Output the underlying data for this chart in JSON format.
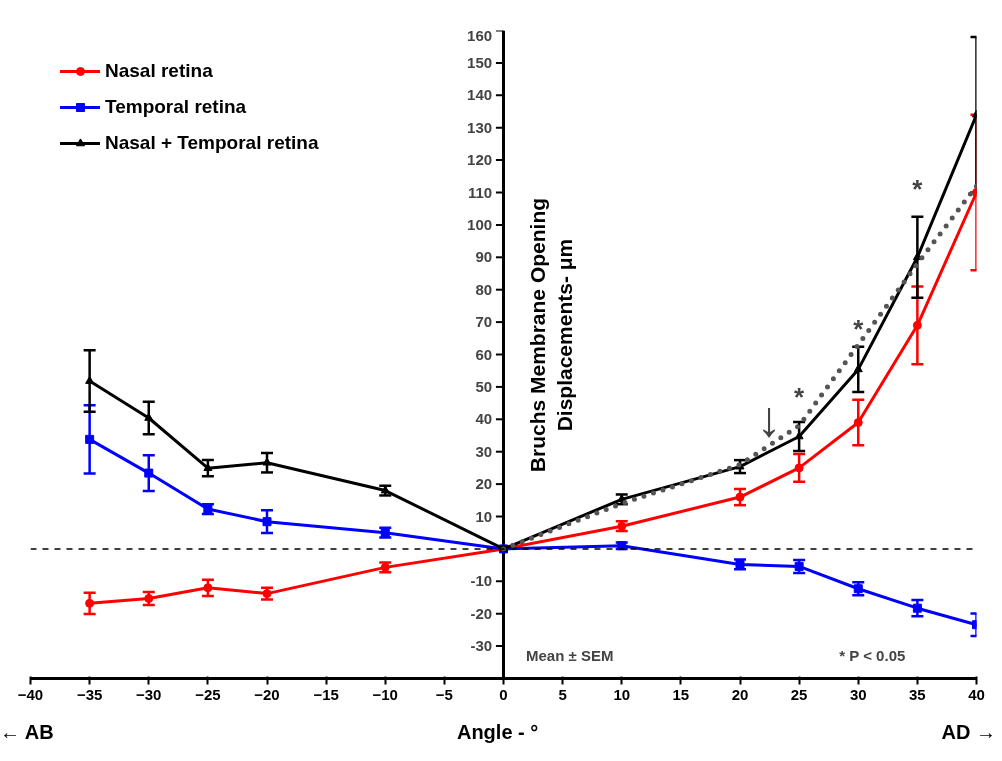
{
  "chart_data": {
    "type": "line",
    "xlabel": "Angle - °",
    "ylabel": "Bruchs Membrane Opening\nDisplacements- μm",
    "x": [
      -35,
      -30,
      -25,
      -20,
      -10,
      0,
      10,
      20,
      25,
      30,
      35,
      40
    ],
    "xlim": [
      -40,
      40
    ],
    "xticks": [
      -40,
      -35,
      -30,
      -25,
      -20,
      -15,
      -10,
      -5,
      0,
      5,
      10,
      15,
      20,
      25,
      30,
      35,
      40
    ],
    "ylim": [
      -40,
      160
    ],
    "yticks": [
      -30,
      -20,
      -10,
      {
        "value": 0,
        "label": null
      },
      10,
      20,
      30,
      40,
      50,
      60,
      70,
      80,
      90,
      100,
      110,
      120,
      130,
      140,
      150,
      160
    ],
    "grid": false,
    "legend": "top left",
    "series": [
      {
        "name": "Nasal retina",
        "color": "#ff0000",
        "marker": "circle",
        "values": [
          -16.8,
          -15.3,
          -12,
          -13.8,
          -5.7,
          0,
          7,
          16,
          25,
          39,
          69,
          110
        ],
        "errors": [
          3.3,
          2,
          2.5,
          1.8,
          1.5,
          null,
          1.5,
          2.5,
          4.3,
          7,
          12,
          24
        ]
      },
      {
        "name": "Temporal retina",
        "color": "#0000ff",
        "marker": "square",
        "values": [
          33.8,
          23.4,
          12.3,
          8.4,
          5,
          0,
          1,
          -4.8,
          -5.4,
          -12.3,
          -18.3,
          -23.4
        ],
        "errors": [
          10.5,
          5.5,
          1.5,
          3.5,
          1.5,
          null,
          1,
          1.5,
          2,
          2,
          2.5,
          3.5
        ]
      },
      {
        "name": "Nasal + Temporal retina",
        "color": "#000000",
        "marker": "triangle",
        "values": [
          51.8,
          40.4,
          24.9,
          26.6,
          18,
          0,
          15.3,
          25.4,
          34.7,
          55.4,
          90,
          134
        ],
        "errors": [
          9.5,
          5,
          2.5,
          3,
          1.5,
          null,
          1.5,
          2,
          4.5,
          7,
          12.5,
          24
        ]
      },
      {
        "type": "line",
        "color": "#555555",
        "line_style": "dotted",
        "marker": "none",
        "x": [
          0,
          5,
          10,
          15,
          20,
          25,
          30,
          35,
          40
        ],
        "values": [
          0,
          7,
          14,
          20,
          26,
          38,
          63,
          88,
          112
        ]
      }
    ],
    "ref_lines": [
      {
        "axis": "y",
        "value": 0,
        "color": "#000000",
        "line_style": "dashed"
      }
    ],
    "annotations": [
      "*",
      "*",
      "*",
      "↓",
      "Mean ± SEM",
      "* P < 0.05",
      "← AB",
      "AD →"
    ]
  }
}
